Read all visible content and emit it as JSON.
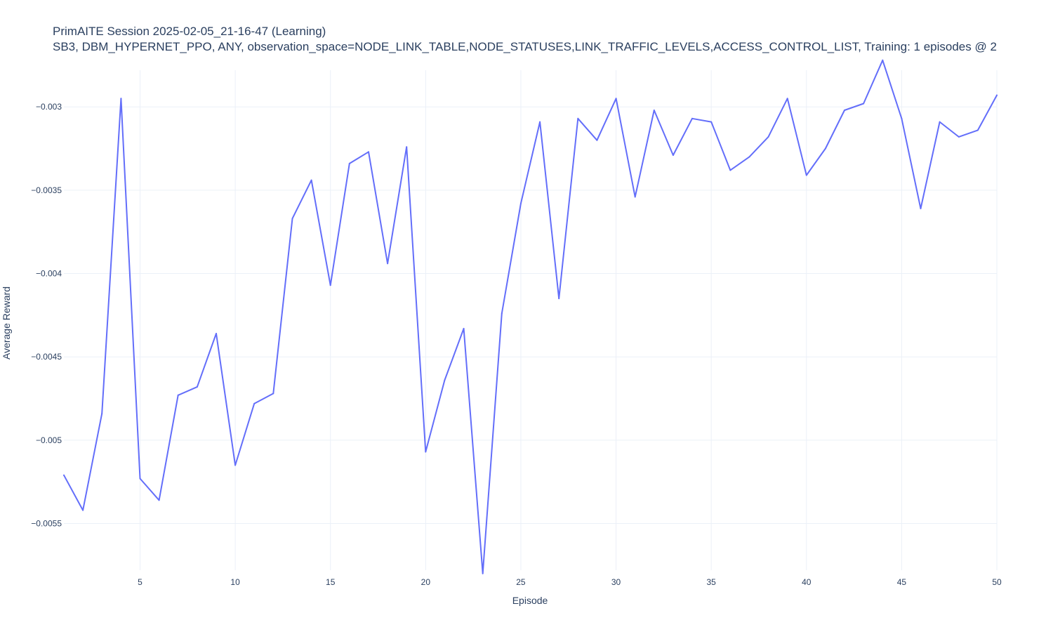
{
  "chart_data": {
    "type": "line",
    "title": "PrimAITE Session 2025-02-05_21-16-47 (Learning)",
    "subtitle": "SB3, DBM_HYPERNET_PPO, ANY, observation_space=NODE_LINK_TABLE,NODE_STATUSES,LINK_TRAFFIC_LEVELS,ACCESS_CONTROL_LIST, Training: 1 episodes @ 2",
    "xlabel": "Episode",
    "ylabel": "Average Reward",
    "xlim": [
      1,
      50
    ],
    "ylim": [
      -0.00578,
      -0.00278
    ],
    "x_ticks": [
      5,
      10,
      15,
      20,
      25,
      30,
      35,
      40,
      45,
      50
    ],
    "x_tick_labels": [
      "5",
      "10",
      "15",
      "20",
      "25",
      "30",
      "35",
      "40",
      "45",
      "50"
    ],
    "y_ticks": [
      -0.003,
      -0.0035,
      -0.004,
      -0.0045,
      -0.005,
      -0.0055
    ],
    "y_tick_labels": [
      "−0.003",
      "−0.0035",
      "−0.004",
      "−0.0045",
      "−0.005",
      "−0.0055"
    ],
    "grid": true,
    "line_color": "#636efa",
    "series": [
      {
        "x": [
          1,
          2,
          3,
          4,
          5,
          6,
          7,
          8,
          9,
          10,
          11,
          12,
          13,
          14,
          15,
          16,
          17,
          18,
          19,
          20,
          21,
          22,
          23,
          24,
          25,
          26,
          27,
          28,
          29,
          30,
          31,
          32,
          33,
          34,
          35,
          36,
          37,
          38,
          39,
          40,
          41,
          42,
          43,
          44,
          45,
          46,
          47,
          48,
          49,
          50
        ],
        "values": [
          -0.00521,
          -0.00542,
          -0.00484,
          -0.00295,
          -0.00523,
          -0.00536,
          -0.00473,
          -0.00468,
          -0.00436,
          -0.00515,
          -0.00478,
          -0.00472,
          -0.00367,
          -0.00344,
          -0.00407,
          -0.00334,
          -0.00327,
          -0.00394,
          -0.00324,
          -0.00507,
          -0.00464,
          -0.00433,
          -0.0058,
          -0.00424,
          -0.00358,
          -0.00309,
          -0.00415,
          -0.00307,
          -0.0032,
          -0.00295,
          -0.00354,
          -0.00302,
          -0.00329,
          -0.00307,
          -0.00309,
          -0.00338,
          -0.0033,
          -0.00318,
          -0.00295,
          -0.00341,
          -0.00325,
          -0.00302,
          -0.00298,
          -0.00272,
          -0.00307,
          -0.00361,
          -0.00309,
          -0.00318,
          -0.00314,
          -0.00293
        ]
      }
    ]
  }
}
